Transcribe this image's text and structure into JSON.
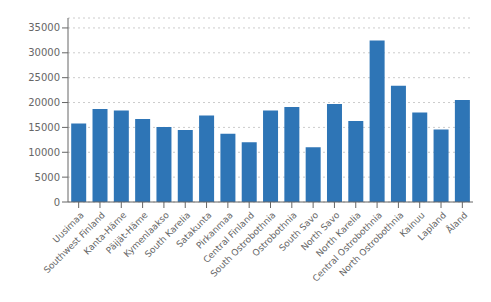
{
  "chart_data": {
    "type": "bar",
    "categories": [
      "Uusimaa",
      "Southwest Finland",
      "Kanta-Häme",
      "Päijät-Häme",
      "Kymenlaakso",
      "South Karelia",
      "Satakunta",
      "Pirkanmaa",
      "Central Finland",
      "South Ostrobothnia",
      "Ostrobothnia",
      "South Savo",
      "North Savo",
      "North Karelia",
      "Central Ostrobothnia",
      "North Ostrobothnia",
      "Kainuu",
      "Lapland",
      "Åland"
    ],
    "values": [
      15800,
      18700,
      18400,
      16700,
      15100,
      14500,
      17400,
      13700,
      12000,
      18400,
      19100,
      11000,
      19700,
      16300,
      32500,
      23400,
      18000,
      14600,
      20500
    ],
    "color": "#2e75b6",
    "ylim": [
      0,
      37000
    ],
    "yticks": [
      0,
      5000,
      10000,
      15000,
      20000,
      25000,
      30000,
      35000
    ],
    "grid": true
  }
}
